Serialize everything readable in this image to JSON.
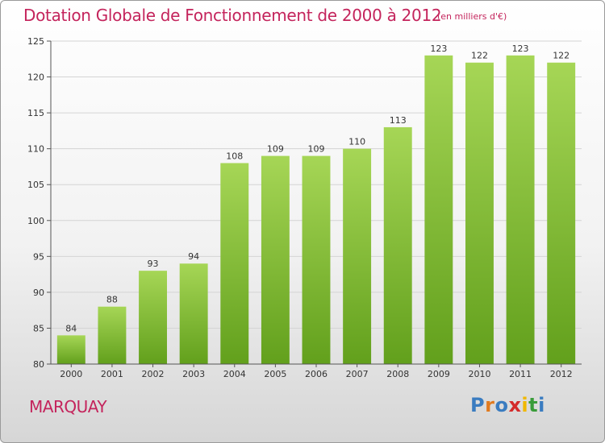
{
  "header": {
    "title": "Dotation Globale de Fonctionnement de 2000 à 2012",
    "subtitle": "(en milliers d'€)"
  },
  "footer": {
    "commune": "MARQUAY",
    "logo_letters": [
      "P",
      "r",
      "o",
      "x",
      "i",
      "t",
      "i"
    ],
    "logo_colors": [
      "#3a7cc0",
      "#e07a1f",
      "#3a7cc0",
      "#d42a2a",
      "#f0b800",
      "#3a9c3a",
      "#3a7cc0"
    ]
  },
  "colors": {
    "title": "#c4245c",
    "bar_light": "#a6d656",
    "bar_dark": "#62a01c",
    "axis": "#555555",
    "grid": "#d4d4d4"
  },
  "chart_data": {
    "type": "bar",
    "categories": [
      "2000",
      "2001",
      "2002",
      "2003",
      "2004",
      "2005",
      "2006",
      "2007",
      "2008",
      "2009",
      "2010",
      "2011",
      "2012"
    ],
    "values": [
      84,
      88,
      93,
      94,
      108,
      109,
      109,
      110,
      113,
      123,
      122,
      123,
      122
    ],
    "data_labels": [
      "84",
      "88",
      "93",
      "94",
      "108",
      "109",
      "109",
      "110",
      "113",
      "123",
      "122",
      "123",
      "122"
    ],
    "yticks": [
      80,
      85,
      90,
      95,
      100,
      105,
      110,
      115,
      120,
      125
    ],
    "ylim": [
      80,
      125
    ],
    "grid": true,
    "legend": "none"
  }
}
